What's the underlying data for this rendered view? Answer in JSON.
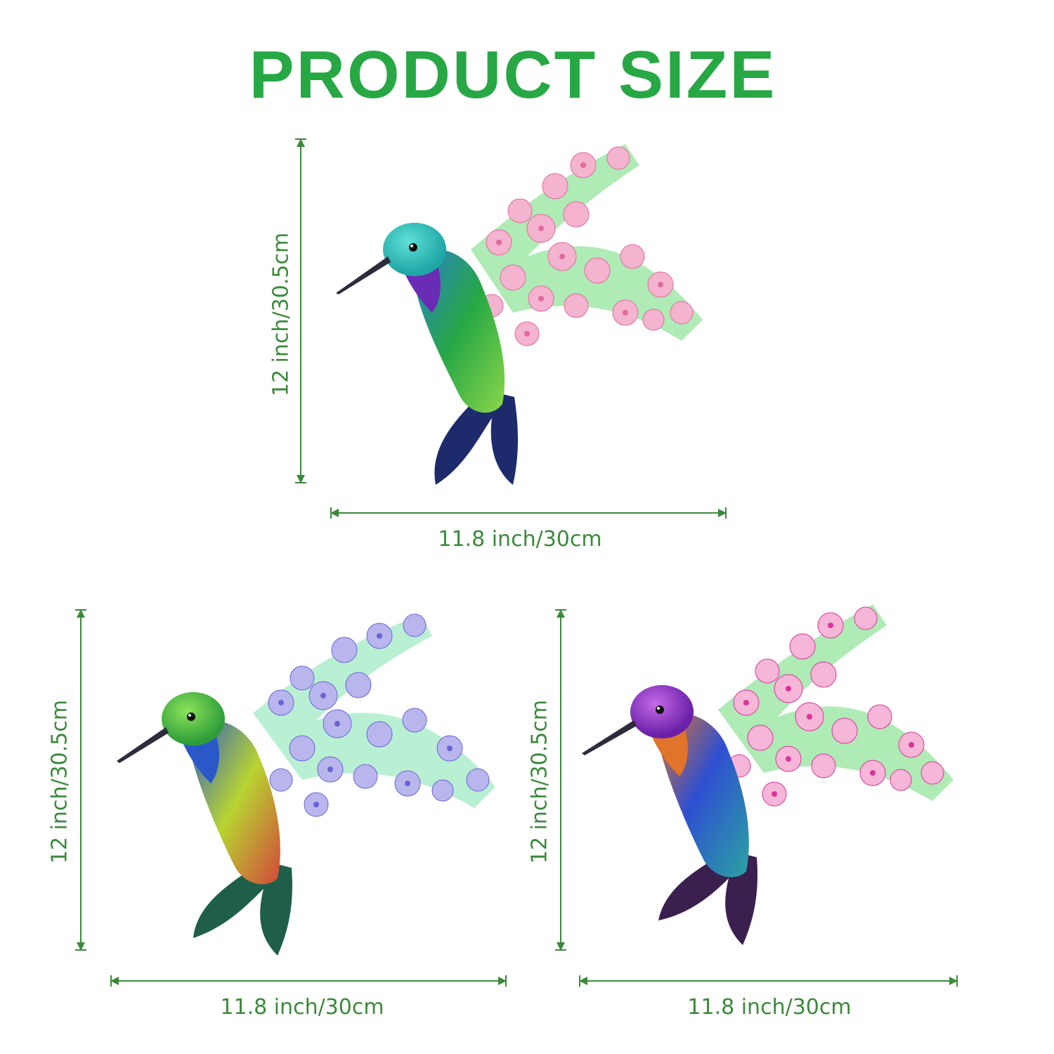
{
  "title": "PRODUCT SIZE",
  "products": [
    {
      "variant": "teal-blue hummingbird with pink blossoms",
      "height_label": "12 inch/30.5cm",
      "width_label": "11.8 inch/30cm",
      "colors": {
        "head": "#1fa6a6",
        "throat": "#6a2bb5",
        "body": "#27a844",
        "tail": "#1d2a6b",
        "blossom": "#f4b3cf",
        "blossom_center": "#e06b9d"
      }
    },
    {
      "variant": "green-yellow hummingbird with blue-violet blossoms",
      "height_label": "12 inch/30.5cm",
      "width_label": "11.8 inch/30cm",
      "colors": {
        "head": "#3fb83c",
        "throat": "#2b58c9",
        "body": "#b8d431",
        "tail": "#1f5f4a",
        "blossom": "#b9b6ee",
        "blossom_center": "#6b63d6"
      }
    },
    {
      "variant": "purple-orange hummingbird with pink blossoms",
      "height_label": "12 inch/30.5cm",
      "width_label": "11.8 inch/30cm",
      "colors": {
        "head": "#8a2bc9",
        "throat": "#e0742b",
        "body": "#2f4fd1",
        "tail": "#3a1f4f",
        "blossom": "#f6b6d8",
        "blossom_center": "#d8359a"
      }
    }
  ],
  "accent_color": "#27a844",
  "dimension_line_color": "#3b8a3b"
}
